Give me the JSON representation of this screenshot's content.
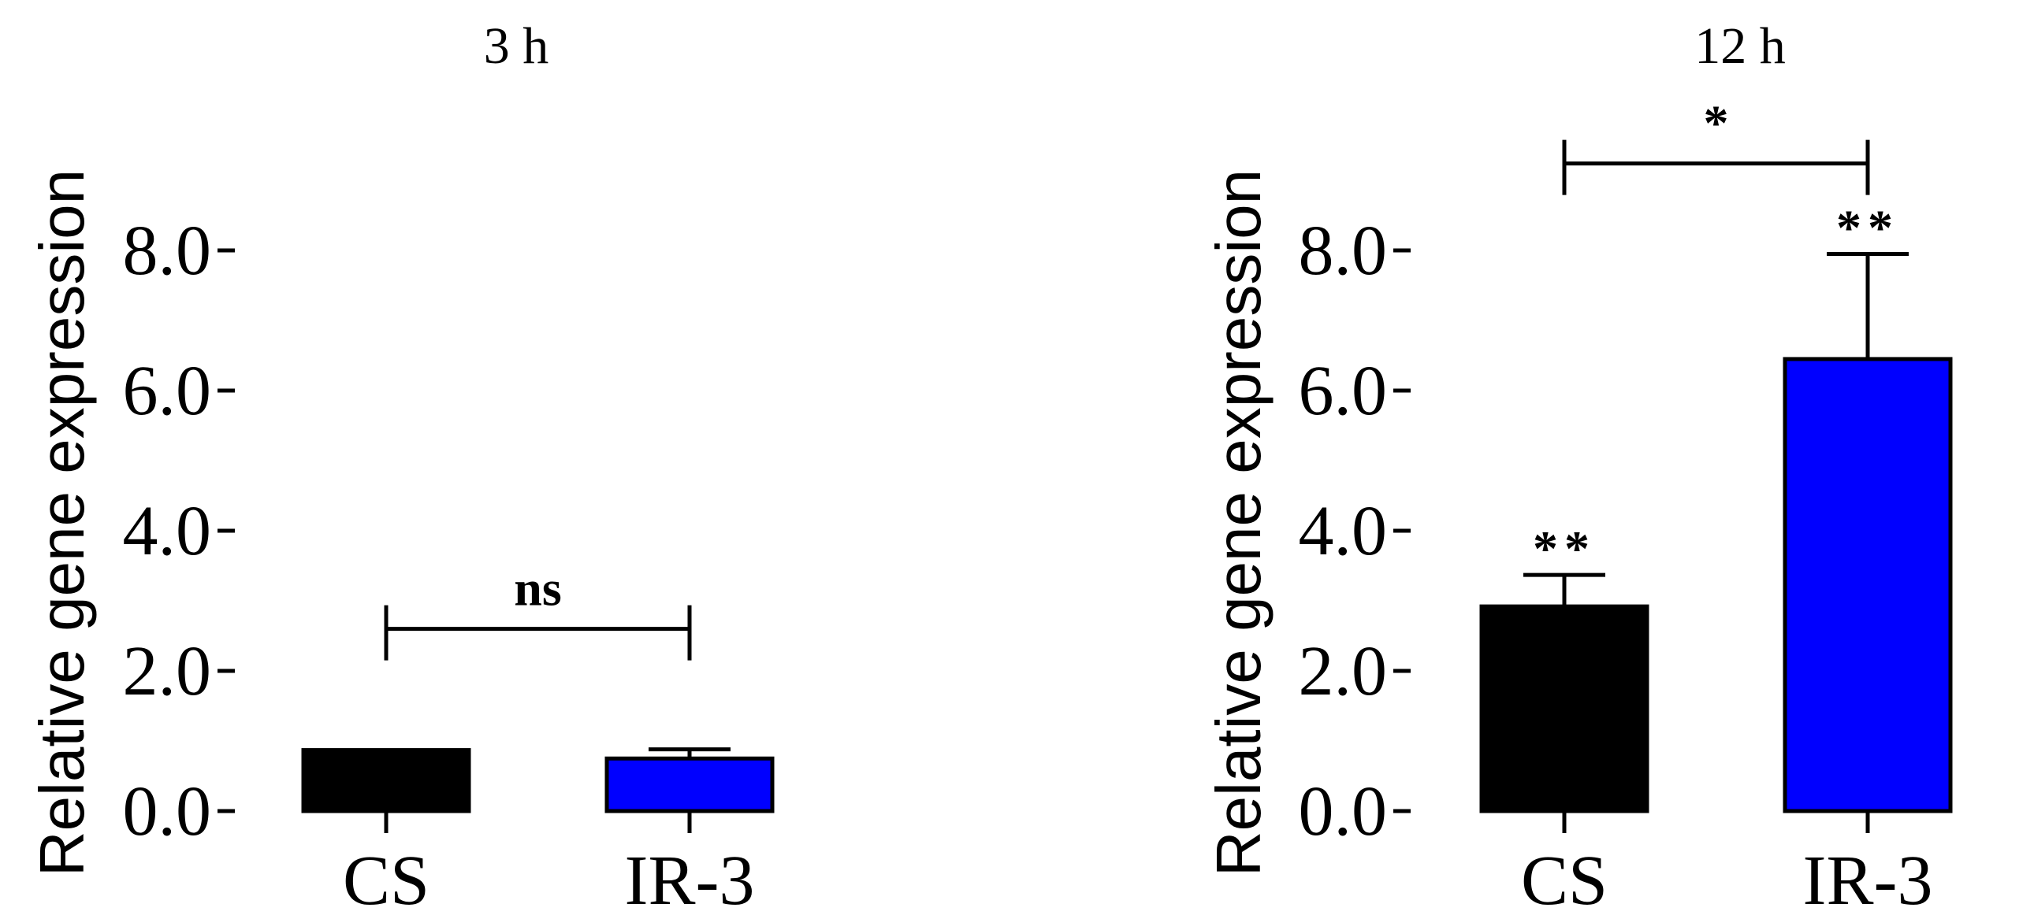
{
  "chart_data": [
    {
      "type": "bar",
      "title": "3 h",
      "ylabel": "Relative gene expression",
      "categories": [
        "CS",
        "IR-3"
      ],
      "values": [
        0.87,
        0.75
      ],
      "errors": [
        0.0,
        0.13
      ],
      "colors": [
        "#000000",
        "#0000ff"
      ],
      "ylim": [
        0,
        8
      ],
      "yticks": [
        "0.0",
        "2.0",
        "4.0",
        "6.0",
        "8.0"
      ],
      "bar_annotations": [
        "",
        ""
      ],
      "comparison": {
        "label": "ns",
        "level": 2.6
      }
    },
    {
      "type": "bar",
      "title": "12 h",
      "ylabel": "Relative gene expression",
      "categories": [
        "CS",
        "IR-3"
      ],
      "values": [
        2.92,
        6.45
      ],
      "errors": [
        0.45,
        1.5
      ],
      "colors": [
        "#000000",
        "#0000ff"
      ],
      "ylim": [
        0,
        8
      ],
      "yticks": [
        "0.0",
        "2.0",
        "4.0",
        "6.0",
        "8.0"
      ],
      "bar_annotations": [
        "**",
        "**"
      ],
      "comparison": {
        "label": "*",
        "level": 9.24
      }
    }
  ]
}
